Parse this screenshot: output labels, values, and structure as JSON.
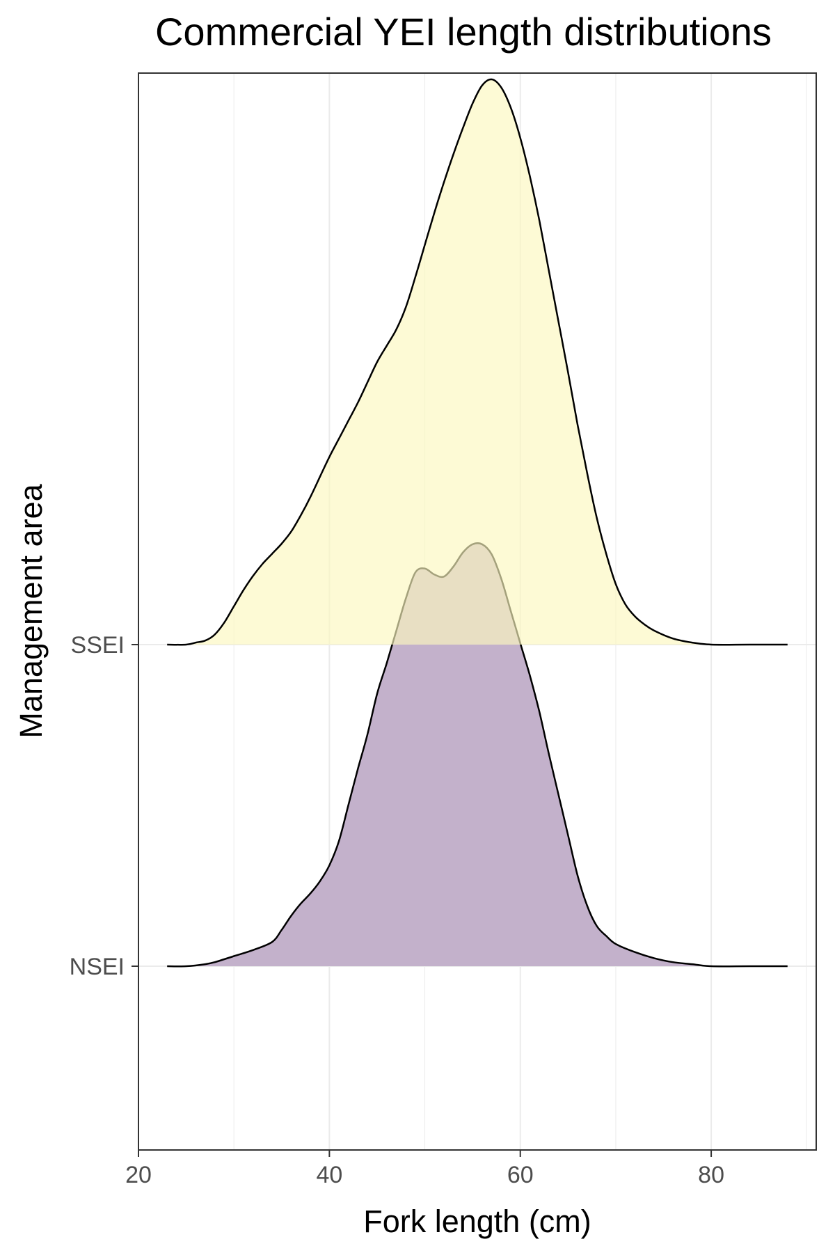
{
  "chart_data": {
    "type": "ridgeline density",
    "title": "Commercial YEI length distributions",
    "xlabel": "Fork length (cm)",
    "ylabel": "Management area",
    "xlim": [
      20,
      91
    ],
    "x_ticks": [
      20,
      40,
      60,
      80
    ],
    "grid": true,
    "categories": [
      "NSEI",
      "SSEI"
    ],
    "series": [
      {
        "name": "NSEI",
        "fill": "#c3b1cb",
        "points": [
          [
            23,
            0.0
          ],
          [
            25,
            0.0
          ],
          [
            27,
            0.01
          ],
          [
            28,
            0.02
          ],
          [
            30,
            0.05
          ],
          [
            32,
            0.08
          ],
          [
            34,
            0.12
          ],
          [
            35,
            0.18
          ],
          [
            36,
            0.25
          ],
          [
            37,
            0.31
          ],
          [
            38,
            0.36
          ],
          [
            39,
            0.42
          ],
          [
            40,
            0.5
          ],
          [
            41,
            0.62
          ],
          [
            42,
            0.8
          ],
          [
            43,
            0.98
          ],
          [
            44,
            1.15
          ],
          [
            45,
            1.35
          ],
          [
            46,
            1.5
          ],
          [
            47,
            1.66
          ],
          [
            48,
            1.82
          ],
          [
            49,
            1.95
          ],
          [
            50,
            1.97
          ],
          [
            51,
            1.94
          ],
          [
            52,
            1.93
          ],
          [
            53,
            1.98
          ],
          [
            54,
            2.05
          ],
          [
            55,
            2.09
          ],
          [
            56,
            2.09
          ],
          [
            57,
            2.04
          ],
          [
            58,
            1.92
          ],
          [
            59,
            1.76
          ],
          [
            60,
            1.6
          ],
          [
            61,
            1.44
          ],
          [
            62,
            1.26
          ],
          [
            63,
            1.05
          ],
          [
            64,
            0.85
          ],
          [
            65,
            0.65
          ],
          [
            66,
            0.45
          ],
          [
            67,
            0.3
          ],
          [
            68,
            0.2
          ],
          [
            69,
            0.15
          ],
          [
            70,
            0.11
          ],
          [
            72,
            0.07
          ],
          [
            74,
            0.04
          ],
          [
            76,
            0.02
          ],
          [
            78,
            0.01
          ],
          [
            80,
            0.0
          ],
          [
            84,
            0.0
          ],
          [
            88,
            0.0
          ]
        ]
      },
      {
        "name": "SSEI",
        "fill": "#fcf7bf",
        "points": [
          [
            23,
            0.0
          ],
          [
            25,
            0.0
          ],
          [
            26,
            0.01
          ],
          [
            27,
            0.02
          ],
          [
            28,
            0.05
          ],
          [
            29,
            0.11
          ],
          [
            30,
            0.19
          ],
          [
            31,
            0.27
          ],
          [
            32,
            0.34
          ],
          [
            33,
            0.4
          ],
          [
            34,
            0.45
          ],
          [
            35,
            0.5
          ],
          [
            36,
            0.56
          ],
          [
            37,
            0.64
          ],
          [
            38,
            0.73
          ],
          [
            39,
            0.83
          ],
          [
            40,
            0.93
          ],
          [
            41,
            1.02
          ],
          [
            42,
            1.11
          ],
          [
            43,
            1.2
          ],
          [
            44,
            1.3
          ],
          [
            45,
            1.4
          ],
          [
            46,
            1.48
          ],
          [
            47,
            1.56
          ],
          [
            48,
            1.67
          ],
          [
            49,
            1.82
          ],
          [
            50,
            1.98
          ],
          [
            51,
            2.14
          ],
          [
            52,
            2.29
          ],
          [
            53,
            2.43
          ],
          [
            54,
            2.56
          ],
          [
            55,
            2.68
          ],
          [
            56,
            2.77
          ],
          [
            57,
            2.8
          ],
          [
            58,
            2.76
          ],
          [
            59,
            2.66
          ],
          [
            60,
            2.51
          ],
          [
            61,
            2.32
          ],
          [
            62,
            2.1
          ],
          [
            63,
            1.85
          ],
          [
            64,
            1.6
          ],
          [
            65,
            1.35
          ],
          [
            66,
            1.09
          ],
          [
            67,
            0.85
          ],
          [
            68,
            0.63
          ],
          [
            69,
            0.45
          ],
          [
            70,
            0.3
          ],
          [
            71,
            0.2
          ],
          [
            72,
            0.14
          ],
          [
            73,
            0.1
          ],
          [
            74,
            0.07
          ],
          [
            76,
            0.03
          ],
          [
            78,
            0.01
          ],
          [
            80,
            0.0
          ],
          [
            84,
            0.0
          ],
          [
            88,
            0.0
          ]
        ]
      }
    ]
  }
}
